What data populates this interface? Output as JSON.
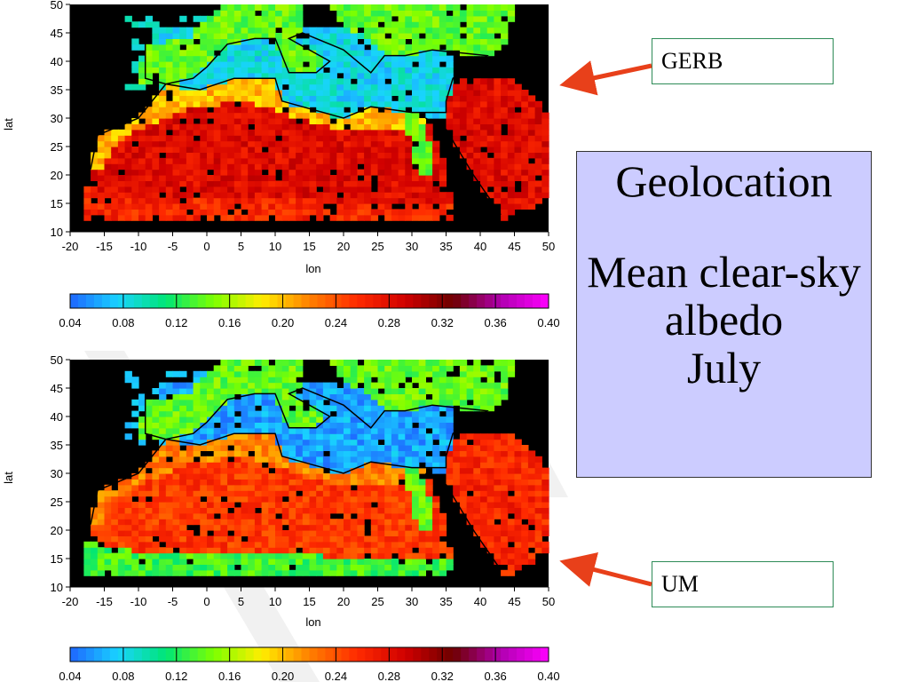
{
  "slide": {
    "title_lines": [
      "Geolocation",
      "Mean clear-sky albedo",
      "July"
    ],
    "background_box_color": "#ccccff",
    "callouts": {
      "top": "GERB",
      "bottom": "UM"
    },
    "arrow_color": "#e8401a"
  },
  "chart_data": [
    {
      "type": "heatmap",
      "name": "GERB",
      "xlabel": "lon",
      "ylabel": "lat",
      "xlim": [
        -20,
        50
      ],
      "ylim": [
        10,
        50
      ],
      "xticks": [
        -20,
        -15,
        -10,
        -5,
        0,
        5,
        10,
        15,
        20,
        25,
        30,
        35,
        40,
        45,
        50
      ],
      "yticks": [
        10,
        15,
        20,
        25,
        30,
        35,
        40,
        45,
        50
      ],
      "missing_color": "#000000",
      "regions": {
        "sea": 0.08,
        "land_europe": 0.14,
        "sahara": 0.28,
        "arabia": 0.28,
        "sahel": 0.26,
        "nile_valley": 0.14,
        "coast_strip": 0.2
      }
    },
    {
      "type": "heatmap",
      "name": "UM",
      "xlabel": "lon",
      "ylabel": "lat",
      "xlim": [
        -20,
        50
      ],
      "ylim": [
        10,
        50
      ],
      "xticks": [
        -20,
        -15,
        -10,
        -5,
        0,
        5,
        10,
        15,
        20,
        25,
        30,
        35,
        40,
        45,
        50
      ],
      "yticks": [
        10,
        15,
        20,
        25,
        30,
        35,
        40,
        45,
        50
      ],
      "missing_color": "#000000",
      "regions": {
        "sea": 0.06,
        "land_europe": 0.14,
        "sahara": 0.25,
        "arabia": 0.26,
        "sahel": 0.13,
        "nile_valley": 0.14,
        "coast_strip": 0.22
      }
    }
  ],
  "colorbar": {
    "ticks": [
      "0.04",
      "0.08",
      "0.12",
      "0.16",
      "0.20",
      "0.24",
      "0.28",
      "0.32",
      "0.36",
      "0.40"
    ],
    "min": 0.04,
    "max": 0.4,
    "stops": [
      "#1e66ff",
      "#19d3ff",
      "#00e676",
      "#7cff00",
      "#ffee00",
      "#ff8000",
      "#ff2a00",
      "#d00000",
      "#6e0000",
      "#b000b0",
      "#ff00ff"
    ]
  }
}
